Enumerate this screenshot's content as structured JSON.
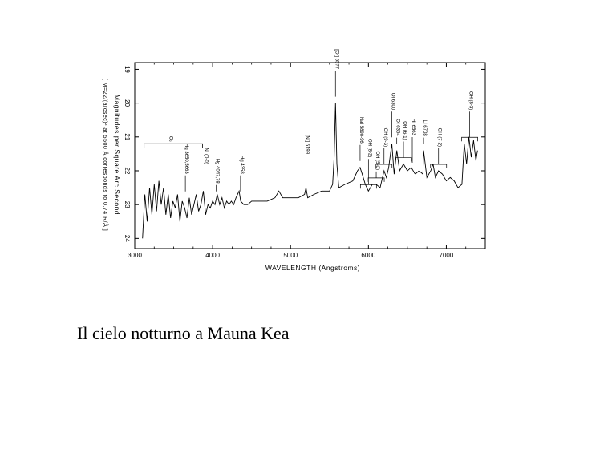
{
  "caption": "Il cielo notturno a Mauna Kea",
  "chart_data": {
    "type": "line",
    "xlabel": "WAVELENGTH  (Angstroms)",
    "ylabel_line1": "Magnitudes  per  Square  Arc  Second",
    "ylabel_line2": "[ M=22/(arcsec)² at 5500 Å corresponds to 0.74 R/Å ]",
    "xlim": [
      3000,
      7500
    ],
    "ylim": [
      24.3,
      18.8
    ],
    "x_ticks": [
      3000,
      4000,
      5000,
      6000,
      7000
    ],
    "y_ticks": [
      19,
      20,
      21,
      22,
      23,
      24
    ],
    "series": [
      {
        "x": [
          3100,
          3130,
          3160,
          3190,
          3220,
          3250,
          3280,
          3310,
          3340,
          3370,
          3400,
          3430,
          3460,
          3490,
          3520,
          3550,
          3580,
          3610,
          3640,
          3670,
          3700,
          3730,
          3760,
          3790,
          3820,
          3850,
          3880,
          3910,
          3940,
          3970,
          4000,
          4030,
          4060,
          4090,
          4120,
          4150,
          4180,
          4210,
          4240,
          4270,
          4300,
          4340,
          4360,
          4400,
          4450,
          4500,
          4600,
          4700,
          4800,
          4850,
          4900,
          5000,
          5100,
          5180,
          5199,
          5220,
          5300,
          5400,
          5500,
          5540,
          5560,
          5577,
          5595,
          5620,
          5700,
          5800,
          5860,
          5893,
          5920,
          5960,
          6000,
          6050,
          6100,
          6150,
          6200,
          6230,
          6260,
          6300,
          6330,
          6364,
          6400,
          6450,
          6500,
          6550,
          6600,
          6650,
          6700,
          6708,
          6750,
          6800,
          6830,
          6860,
          6900,
          6950,
          7000,
          7050,
          7100,
          7150,
          7200,
          7230,
          7260,
          7290,
          7320,
          7350,
          7380,
          7400
        ],
        "y": [
          24.0,
          22.7,
          23.5,
          22.5,
          23.3,
          22.4,
          23.2,
          22.3,
          23.0,
          22.5,
          23.3,
          22.7,
          23.4,
          22.9,
          23.1,
          22.7,
          23.5,
          22.9,
          23.1,
          23.4,
          22.8,
          23.3,
          23.0,
          22.7,
          23.2,
          23.0,
          22.6,
          23.3,
          23.0,
          23.1,
          22.9,
          23.0,
          22.7,
          23.0,
          22.8,
          23.1,
          22.9,
          23.0,
          22.9,
          23.0,
          22.8,
          22.6,
          22.9,
          23.0,
          23.0,
          22.9,
          22.9,
          22.9,
          22.8,
          22.6,
          22.8,
          22.8,
          22.8,
          22.7,
          22.5,
          22.8,
          22.7,
          22.6,
          22.6,
          22.4,
          21.6,
          20.0,
          21.8,
          22.5,
          22.4,
          22.3,
          22.0,
          21.9,
          22.1,
          22.4,
          22.6,
          22.4,
          22.4,
          22.5,
          22.0,
          22.2,
          21.9,
          21.2,
          22.1,
          21.4,
          22.0,
          21.8,
          22.0,
          21.9,
          22.1,
          22.0,
          22.1,
          21.4,
          22.2,
          22.0,
          21.8,
          22.2,
          22.0,
          22.1,
          22.3,
          22.2,
          22.3,
          22.5,
          22.4,
          21.2,
          21.8,
          21.0,
          21.6,
          21.1,
          21.7,
          21.4
        ]
      }
    ],
    "annotations": [
      {
        "label": "O₂",
        "x": 3450
      },
      {
        "label": "Hg 3650,5663",
        "x": 3650
      },
      {
        "label": "NI (0-0)",
        "x": 3900
      },
      {
        "label": "Hg 4047,78",
        "x": 4047
      },
      {
        "label": "Hg 4358",
        "x": 4358
      },
      {
        "label": "[NI] 5199",
        "x": 5199
      },
      {
        "label": "[OI] 5577",
        "x": 5577
      },
      {
        "label": "NaI 5890-96",
        "x": 5893
      },
      {
        "label": "OH (8-2)",
        "x": 6000
      },
      {
        "label": "OH (5-0)",
        "x": 6100
      },
      {
        "label": "OH (9-3)",
        "x": 6200
      },
      {
        "label": "OI 6300",
        "x": 6300
      },
      {
        "label": "OI 6364",
        "x": 6364
      },
      {
        "label": "OH (6-1)",
        "x": 6450
      },
      {
        "label": "HI 6563",
        "x": 6563
      },
      {
        "label": "LI 6708",
        "x": 6708
      },
      {
        "label": "OH (7-2)",
        "x": 6900
      },
      {
        "label": "OH (8-3)",
        "x": 7300
      }
    ]
  }
}
